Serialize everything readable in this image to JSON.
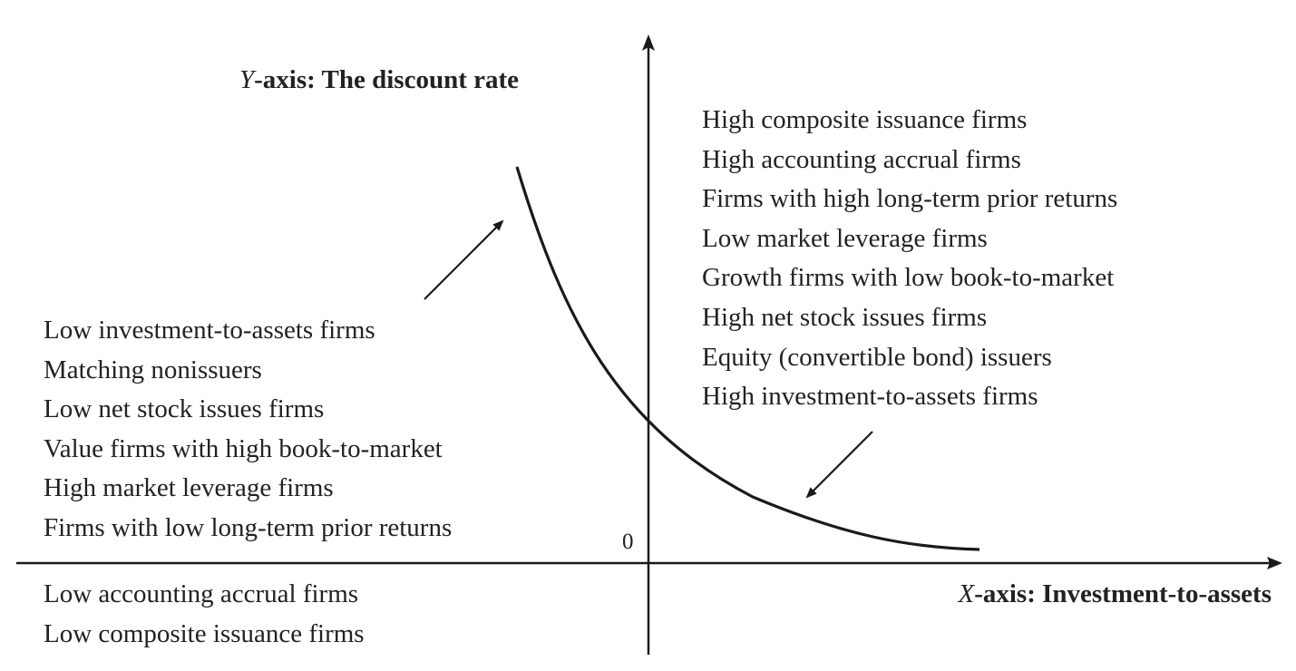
{
  "y_axis": {
    "variable": "Y",
    "title": "-axis: The discount rate"
  },
  "x_axis": {
    "variable": "X",
    "title": "-axis: Investment-to-assets"
  },
  "origin_label": "0",
  "upper_right_list": [
    "High composite issuance firms",
    "High accounting accrual firms",
    "Firms with high long-term prior returns",
    "Low market leverage firms",
    "Growth firms with low book-to-market",
    "High net stock issues firms",
    "Equity (convertible bond) issuers",
    "High investment-to-assets firms"
  ],
  "left_list": [
    "Low investment-to-assets firms",
    "Matching nonissuers",
    "Low net stock issues firms",
    "Value firms with high book-to-market",
    "High market leverage firms",
    "Firms with low long-term prior returns"
  ],
  "lower_left_list": [
    "Low accounting accrual firms",
    "Low composite issuance firms"
  ],
  "colors": {
    "ink": "#1a1a1a"
  }
}
